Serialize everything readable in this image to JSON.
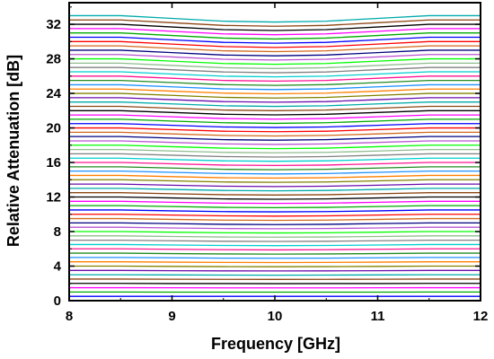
{
  "chart_data": {
    "type": "line",
    "xlabel": "Frequency [GHz]",
    "ylabel": "Relative Attenuation [dB]",
    "xlim": [
      8,
      12
    ],
    "ylim": [
      0,
      34.5
    ],
    "xticks": [
      8,
      9,
      10,
      11,
      12
    ],
    "yticks": [
      0,
      4,
      8,
      12,
      16,
      20,
      24,
      28,
      32
    ],
    "grid": false,
    "legend": "none",
    "x": [
      8,
      8.5,
      9,
      9.5,
      10,
      10.5,
      11,
      11.5,
      12
    ],
    "series": [
      {
        "color": "#ff0000",
        "values": [
          0.0,
          0.0,
          0.0,
          0.0,
          0.0,
          0.0,
          0.0,
          0.0,
          0.0
        ]
      },
      {
        "color": "#0000ff",
        "values": [
          0.5,
          0.5,
          0.5,
          0.5,
          0.5,
          0.5,
          0.5,
          0.5,
          0.5
        ]
      },
      {
        "color": "#00aa00",
        "values": [
          1.0,
          1.0,
          0.99,
          0.99,
          0.99,
          0.99,
          0.99,
          1.0,
          1.0
        ]
      },
      {
        "color": "#ff00ff",
        "values": [
          1.5,
          1.5,
          1.49,
          1.48,
          1.48,
          1.48,
          1.49,
          1.5,
          1.5
        ]
      },
      {
        "color": "#000000",
        "values": [
          2.0,
          2.0,
          1.98,
          1.98,
          1.97,
          1.98,
          1.98,
          2.0,
          2.0
        ]
      },
      {
        "color": "#8b4513",
        "values": [
          2.5,
          2.5,
          2.48,
          2.47,
          2.46,
          2.47,
          2.48,
          2.5,
          2.5
        ]
      },
      {
        "color": "#00aaaa",
        "values": [
          3.0,
          3.0,
          2.98,
          2.96,
          2.95,
          2.96,
          2.98,
          3.0,
          3.0
        ]
      },
      {
        "color": "#6a0dad",
        "values": [
          3.5,
          3.5,
          3.47,
          3.45,
          3.44,
          3.45,
          3.47,
          3.5,
          3.5
        ]
      },
      {
        "color": "#808000",
        "values": [
          4.0,
          4.0,
          3.97,
          3.94,
          3.93,
          3.94,
          3.97,
          4.0,
          4.0
        ]
      },
      {
        "color": "#ff7f00",
        "values": [
          4.5,
          4.5,
          4.46,
          4.43,
          4.42,
          4.43,
          4.46,
          4.5,
          4.5
        ]
      },
      {
        "color": "#1e90ff",
        "values": [
          5.0,
          5.0,
          4.96,
          4.92,
          4.91,
          4.92,
          4.96,
          5.0,
          5.0
        ]
      },
      {
        "color": "#228b22",
        "values": [
          5.5,
          5.5,
          5.45,
          5.41,
          5.39,
          5.41,
          5.45,
          5.5,
          5.5
        ]
      },
      {
        "color": "#ff1493",
        "values": [
          6.0,
          6.0,
          5.95,
          5.9,
          5.88,
          5.9,
          5.95,
          6.0,
          6.0
        ]
      },
      {
        "color": "#00ced1",
        "values": [
          6.5,
          6.5,
          6.44,
          6.39,
          6.37,
          6.39,
          6.44,
          6.5,
          6.5
        ]
      },
      {
        "color": "#808080",
        "values": [
          7.0,
          7.0,
          6.94,
          6.88,
          6.86,
          6.88,
          6.94,
          7.0,
          7.0
        ]
      },
      {
        "color": "#8fbc8f",
        "values": [
          7.5,
          7.5,
          7.43,
          7.37,
          7.35,
          7.37,
          7.43,
          7.5,
          7.5
        ]
      },
      {
        "color": "#00ff00",
        "values": [
          8.0,
          8.0,
          7.93,
          7.86,
          7.84,
          7.86,
          7.93,
          8.0,
          8.0
        ]
      },
      {
        "color": "#ba55d3",
        "values": [
          8.5,
          8.5,
          8.42,
          8.35,
          8.33,
          8.35,
          8.42,
          8.5,
          8.5
        ]
      },
      {
        "color": "#000080",
        "values": [
          9.0,
          9.0,
          8.92,
          8.84,
          8.81,
          8.84,
          8.92,
          9.0,
          9.0
        ]
      },
      {
        "color": "#d2691e",
        "values": [
          9.5,
          9.5,
          9.41,
          9.33,
          9.3,
          9.33,
          9.41,
          9.5,
          9.5
        ]
      },
      {
        "color": "#ff0000",
        "values": [
          10.0,
          10.0,
          9.91,
          9.82,
          9.79,
          9.82,
          9.91,
          10.0,
          10.0
        ]
      },
      {
        "color": "#0000ff",
        "values": [
          10.5,
          10.5,
          10.4,
          10.31,
          10.28,
          10.31,
          10.4,
          10.5,
          10.5
        ]
      },
      {
        "color": "#00aa00",
        "values": [
          11.0,
          11.0,
          10.9,
          10.8,
          10.77,
          10.8,
          10.9,
          11.0,
          11.0
        ]
      },
      {
        "color": "#ff00ff",
        "values": [
          11.5,
          11.5,
          11.39,
          11.29,
          11.26,
          11.29,
          11.39,
          11.5,
          11.5
        ]
      },
      {
        "color": "#000000",
        "values": [
          12.0,
          12.0,
          11.89,
          11.78,
          11.74,
          11.78,
          11.89,
          12.0,
          12.0
        ]
      },
      {
        "color": "#8b4513",
        "values": [
          12.5,
          12.5,
          12.38,
          12.27,
          12.23,
          12.27,
          12.38,
          12.5,
          12.5
        ]
      },
      {
        "color": "#00aaaa",
        "values": [
          13.0,
          13.0,
          12.88,
          12.76,
          12.72,
          12.76,
          12.88,
          13.0,
          13.0
        ]
      },
      {
        "color": "#6a0dad",
        "values": [
          13.5,
          13.5,
          13.37,
          13.25,
          13.21,
          13.25,
          13.37,
          13.5,
          13.5
        ]
      },
      {
        "color": "#808000",
        "values": [
          14.0,
          14.0,
          13.87,
          13.74,
          13.7,
          13.74,
          13.87,
          14.0,
          14.0
        ]
      },
      {
        "color": "#ff7f00",
        "values": [
          14.5,
          14.5,
          14.36,
          14.23,
          14.19,
          14.23,
          14.36,
          14.5,
          14.5
        ]
      },
      {
        "color": "#1e90ff",
        "values": [
          15.0,
          15.0,
          14.86,
          14.72,
          14.67,
          14.72,
          14.86,
          15.0,
          15.0
        ]
      },
      {
        "color": "#228b22",
        "values": [
          15.5,
          15.5,
          15.35,
          15.21,
          15.16,
          15.21,
          15.35,
          15.5,
          15.5
        ]
      },
      {
        "color": "#ff1493",
        "values": [
          16.0,
          16.0,
          15.85,
          15.7,
          15.65,
          15.7,
          15.85,
          16.0,
          16.0
        ]
      },
      {
        "color": "#00ced1",
        "values": [
          16.5,
          16.5,
          16.34,
          16.19,
          16.14,
          16.19,
          16.34,
          16.5,
          16.5
        ]
      },
      {
        "color": "#808080",
        "values": [
          17.0,
          17.0,
          16.84,
          16.68,
          16.63,
          16.68,
          16.84,
          17.0,
          17.0
        ]
      },
      {
        "color": "#8fbc8f",
        "values": [
          17.5,
          17.5,
          17.33,
          17.17,
          17.12,
          17.17,
          17.33,
          17.5,
          17.5
        ]
      },
      {
        "color": "#00ff00",
        "values": [
          18.0,
          18.0,
          17.83,
          17.66,
          17.6,
          17.66,
          17.83,
          18.0,
          18.0
        ]
      },
      {
        "color": "#ba55d3",
        "values": [
          18.5,
          18.5,
          18.32,
          18.15,
          18.09,
          18.15,
          18.32,
          18.5,
          18.5
        ]
      },
      {
        "color": "#000080",
        "values": [
          19.0,
          19.0,
          18.82,
          18.64,
          18.58,
          18.64,
          18.82,
          19.0,
          19.0
        ]
      },
      {
        "color": "#d2691e",
        "values": [
          19.5,
          19.5,
          19.31,
          19.13,
          19.07,
          19.13,
          19.31,
          19.5,
          19.5
        ]
      },
      {
        "color": "#ff0000",
        "values": [
          20.0,
          20.0,
          19.81,
          19.62,
          19.56,
          19.62,
          19.81,
          20.0,
          20.0
        ]
      },
      {
        "color": "#0000ff",
        "values": [
          20.5,
          20.5,
          20.3,
          20.11,
          20.05,
          20.11,
          20.3,
          20.5,
          20.5
        ]
      },
      {
        "color": "#00aa00",
        "values": [
          21.0,
          21.0,
          20.8,
          20.6,
          20.53,
          20.6,
          20.8,
          21.0,
          21.0
        ]
      },
      {
        "color": "#ff00ff",
        "values": [
          21.5,
          21.5,
          21.29,
          21.09,
          21.02,
          21.09,
          21.29,
          21.5,
          21.5
        ]
      },
      {
        "color": "#000000",
        "values": [
          22.0,
          22.0,
          21.79,
          21.58,
          21.51,
          21.58,
          21.79,
          22.0,
          22.0
        ]
      },
      {
        "color": "#8b4513",
        "values": [
          22.5,
          22.5,
          22.28,
          22.07,
          22.0,
          22.07,
          22.28,
          22.5,
          22.5
        ]
      },
      {
        "color": "#00aaaa",
        "values": [
          23.0,
          23.0,
          22.78,
          22.56,
          22.49,
          22.56,
          22.78,
          23.0,
          23.0
        ]
      },
      {
        "color": "#6a0dad",
        "values": [
          23.5,
          23.5,
          23.27,
          23.05,
          22.98,
          23.05,
          23.27,
          23.5,
          23.5
        ]
      },
      {
        "color": "#808000",
        "values": [
          24.0,
          24.0,
          23.77,
          23.54,
          23.46,
          23.54,
          23.77,
          24.0,
          24.0
        ]
      },
      {
        "color": "#ff7f00",
        "values": [
          24.5,
          24.5,
          24.26,
          24.03,
          23.95,
          24.03,
          24.26,
          24.5,
          24.5
        ]
      },
      {
        "color": "#1e90ff",
        "values": [
          25.0,
          25.0,
          24.76,
          24.52,
          24.44,
          24.52,
          24.76,
          25.0,
          25.0
        ]
      },
      {
        "color": "#228b22",
        "values": [
          25.5,
          25.5,
          25.25,
          25.01,
          24.93,
          25.01,
          25.25,
          25.5,
          25.5
        ]
      },
      {
        "color": "#ff1493",
        "values": [
          26.0,
          26.0,
          25.75,
          25.5,
          25.42,
          25.5,
          25.75,
          26.0,
          26.0
        ]
      },
      {
        "color": "#00ced1",
        "values": [
          26.5,
          26.5,
          26.24,
          25.99,
          25.91,
          25.99,
          26.24,
          26.5,
          26.5
        ]
      },
      {
        "color": "#808080",
        "values": [
          27.0,
          27.0,
          26.74,
          26.48,
          26.39,
          26.48,
          26.74,
          27.0,
          27.0
        ]
      },
      {
        "color": "#8fbc8f",
        "values": [
          27.5,
          27.5,
          27.23,
          26.97,
          26.88,
          26.97,
          27.23,
          27.5,
          27.5
        ]
      },
      {
        "color": "#00ff00",
        "values": [
          28.0,
          28.0,
          27.73,
          27.46,
          27.37,
          27.46,
          27.73,
          28.0,
          28.0
        ]
      },
      {
        "color": "#ba55d3",
        "values": [
          28.5,
          28.5,
          28.22,
          27.95,
          27.86,
          27.95,
          28.22,
          28.5,
          28.5
        ]
      },
      {
        "color": "#000080",
        "values": [
          29.0,
          29.0,
          28.72,
          28.44,
          28.35,
          28.44,
          28.72,
          29.0,
          29.0
        ]
      },
      {
        "color": "#d2691e",
        "values": [
          29.5,
          29.5,
          29.21,
          28.93,
          28.84,
          28.93,
          29.21,
          29.5,
          29.5
        ]
      },
      {
        "color": "#ff0000",
        "values": [
          30.0,
          30.0,
          29.71,
          29.42,
          29.32,
          29.42,
          29.71,
          30.0,
          30.0
        ]
      },
      {
        "color": "#0000ff",
        "values": [
          30.5,
          30.5,
          30.2,
          29.91,
          29.81,
          29.91,
          30.2,
          30.5,
          30.5
        ]
      },
      {
        "color": "#00aa00",
        "values": [
          31.0,
          31.0,
          30.7,
          30.4,
          30.3,
          30.4,
          30.7,
          31.0,
          31.0
        ]
      },
      {
        "color": "#ff00ff",
        "values": [
          31.5,
          31.5,
          31.19,
          30.89,
          30.79,
          30.89,
          31.19,
          31.5,
          31.5
        ]
      },
      {
        "color": "#000000",
        "values": [
          32.0,
          32.0,
          31.69,
          31.38,
          31.28,
          31.38,
          31.69,
          32.0,
          32.0
        ]
      },
      {
        "color": "#8b4513",
        "values": [
          32.5,
          32.5,
          32.18,
          31.87,
          31.77,
          31.87,
          32.18,
          32.5,
          32.5
        ]
      },
      {
        "color": "#00aaaa",
        "values": [
          33.0,
          33.0,
          32.68,
          32.36,
          32.26,
          32.36,
          32.68,
          33.0,
          33.0
        ]
      }
    ]
  }
}
